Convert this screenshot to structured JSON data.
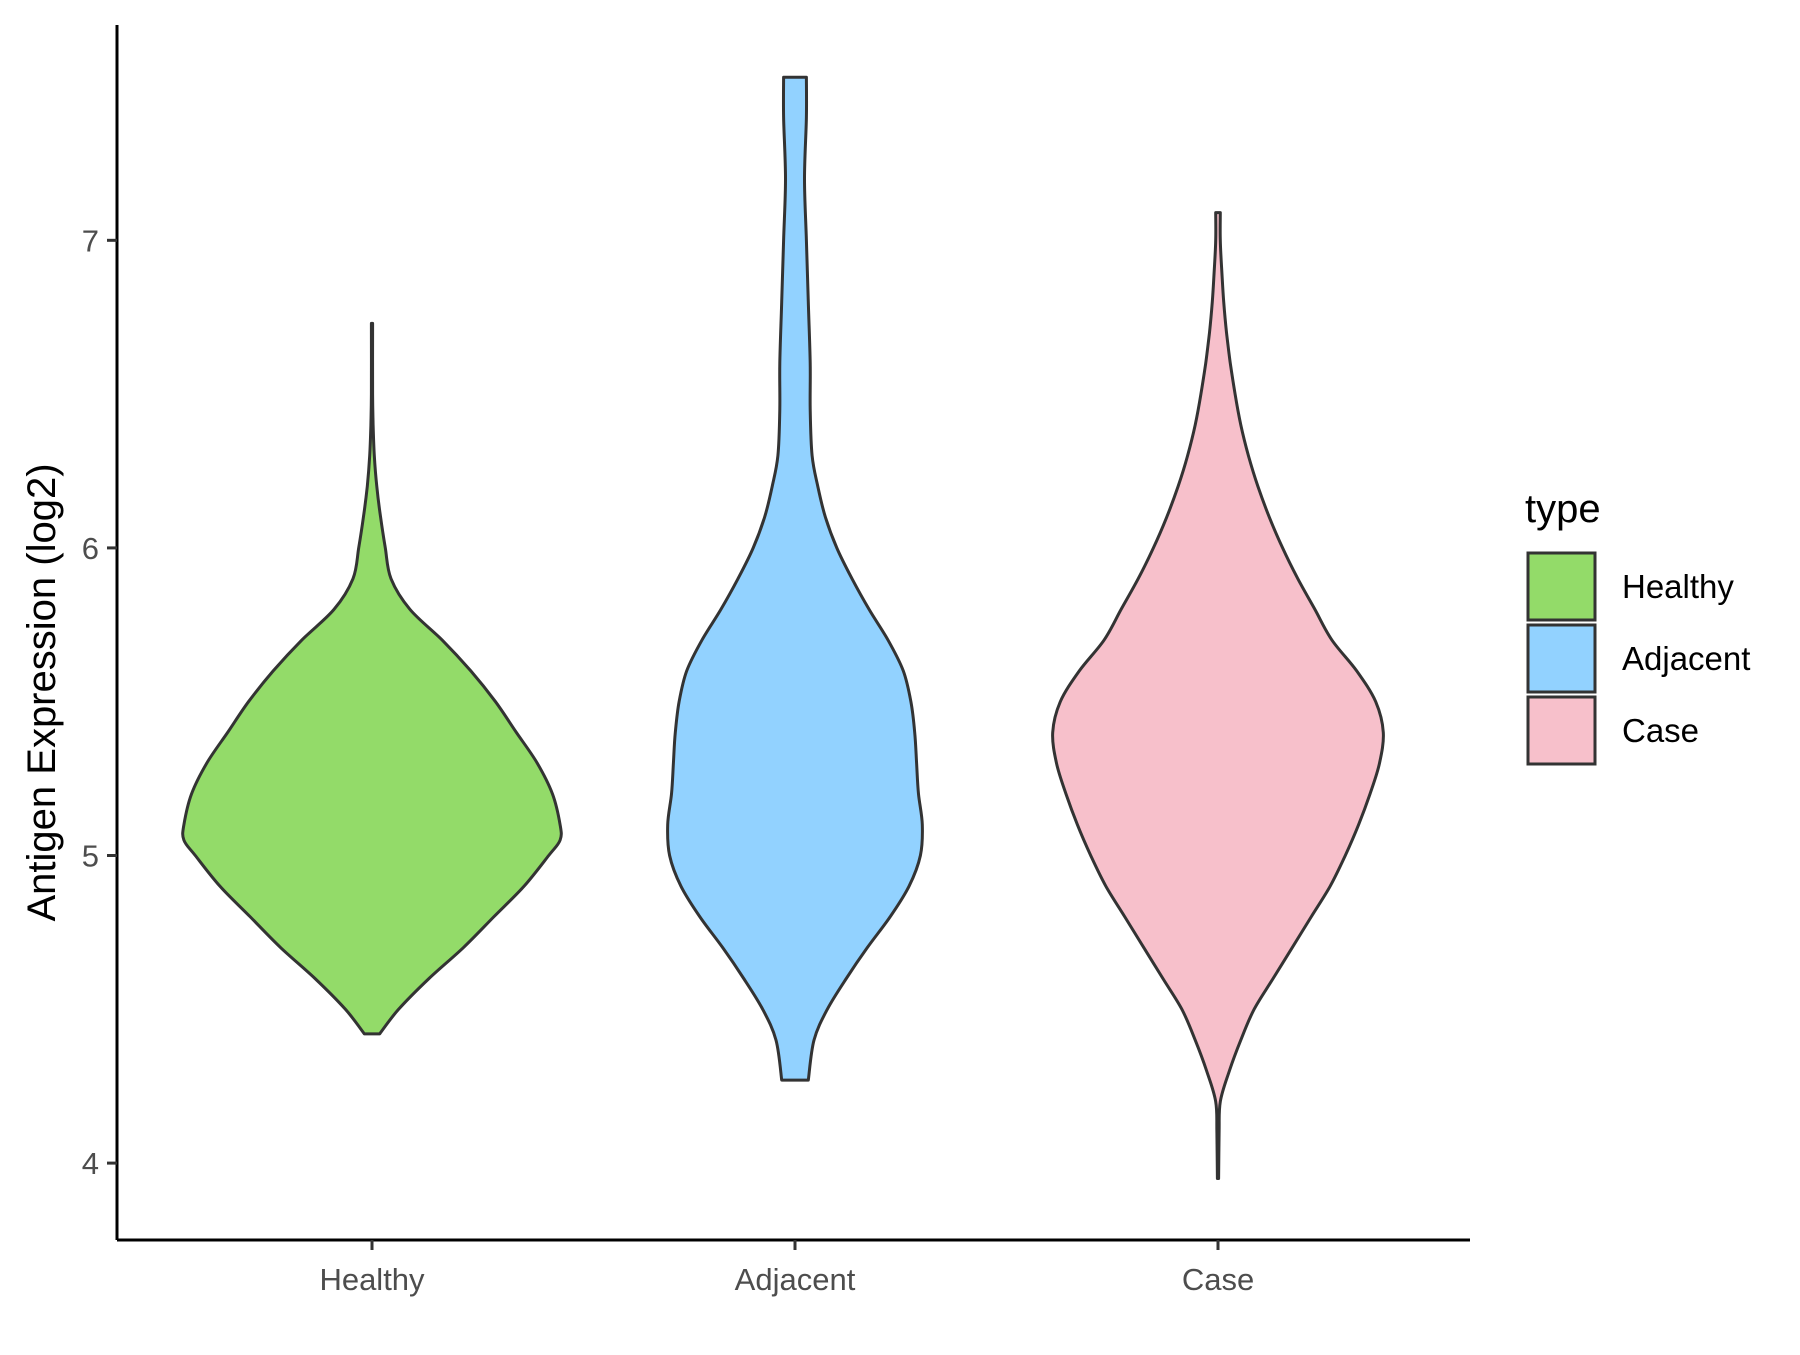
{
  "chart_data": {
    "type": "violin",
    "title": "",
    "xlabel": "",
    "ylabel": "Antigen Expression (log2)",
    "ylim": [
      3.75,
      7.7
    ],
    "yticks": [
      4,
      5,
      6,
      7
    ],
    "grid": false,
    "legend_position": "right",
    "legend_title": "type",
    "categories": [
      "Healthy",
      "Adjacent",
      "Case"
    ],
    "series": [
      {
        "name": "Healthy",
        "color": "#93DB69",
        "min": 4.42,
        "max": 6.73,
        "profile": [
          [
            4.42,
            0.04
          ],
          [
            4.5,
            0.14
          ],
          [
            4.6,
            0.3
          ],
          [
            4.7,
            0.48
          ],
          [
            4.8,
            0.64
          ],
          [
            4.9,
            0.8
          ],
          [
            5.0,
            0.93
          ],
          [
            5.05,
            0.99
          ],
          [
            5.1,
            0.99
          ],
          [
            5.2,
            0.95
          ],
          [
            5.3,
            0.87
          ],
          [
            5.4,
            0.76
          ],
          [
            5.5,
            0.65
          ],
          [
            5.6,
            0.52
          ],
          [
            5.7,
            0.37
          ],
          [
            5.8,
            0.2
          ],
          [
            5.9,
            0.1
          ],
          [
            6.0,
            0.07
          ],
          [
            6.1,
            0.045
          ],
          [
            6.2,
            0.025
          ],
          [
            6.3,
            0.012
          ],
          [
            6.4,
            0.006
          ],
          [
            6.5,
            0.003
          ],
          [
            6.73,
            0.003
          ]
        ]
      },
      {
        "name": "Adjacent",
        "color": "#92D2FF",
        "min": 4.27,
        "max": 7.53,
        "profile": [
          [
            4.27,
            0.07
          ],
          [
            4.4,
            0.1
          ],
          [
            4.5,
            0.17
          ],
          [
            4.6,
            0.27
          ],
          [
            4.7,
            0.38
          ],
          [
            4.8,
            0.5
          ],
          [
            4.9,
            0.6
          ],
          [
            5.0,
            0.66
          ],
          [
            5.1,
            0.67
          ],
          [
            5.2,
            0.65
          ],
          [
            5.3,
            0.64
          ],
          [
            5.4,
            0.63
          ],
          [
            5.5,
            0.61
          ],
          [
            5.6,
            0.57
          ],
          [
            5.7,
            0.49
          ],
          [
            5.8,
            0.39
          ],
          [
            5.9,
            0.3
          ],
          [
            6.0,
            0.22
          ],
          [
            6.1,
            0.16
          ],
          [
            6.2,
            0.12
          ],
          [
            6.3,
            0.09
          ],
          [
            6.45,
            0.08
          ],
          [
            6.6,
            0.08
          ],
          [
            6.8,
            0.07
          ],
          [
            7.0,
            0.06
          ],
          [
            7.2,
            0.05
          ],
          [
            7.4,
            0.06
          ],
          [
            7.53,
            0.06
          ]
        ]
      },
      {
        "name": "Case",
        "color": "#F7C0CB",
        "min": 3.95,
        "max": 7.09,
        "profile": [
          [
            3.95,
            0.003
          ],
          [
            4.1,
            0.006
          ],
          [
            4.2,
            0.012
          ],
          [
            4.3,
            0.06
          ],
          [
            4.4,
            0.12
          ],
          [
            4.5,
            0.19
          ],
          [
            4.6,
            0.29
          ],
          [
            4.7,
            0.39
          ],
          [
            4.8,
            0.49
          ],
          [
            4.9,
            0.59
          ],
          [
            5.0,
            0.67
          ],
          [
            5.1,
            0.74
          ],
          [
            5.2,
            0.8
          ],
          [
            5.3,
            0.85
          ],
          [
            5.4,
            0.87
          ],
          [
            5.5,
            0.83
          ],
          [
            5.6,
            0.73
          ],
          [
            5.7,
            0.6
          ],
          [
            5.8,
            0.51
          ],
          [
            5.9,
            0.42
          ],
          [
            6.0,
            0.34
          ],
          [
            6.1,
            0.27
          ],
          [
            6.2,
            0.21
          ],
          [
            6.3,
            0.16
          ],
          [
            6.4,
            0.12
          ],
          [
            6.5,
            0.09
          ],
          [
            6.6,
            0.065
          ],
          [
            6.7,
            0.045
          ],
          [
            6.8,
            0.03
          ],
          [
            6.9,
            0.02
          ],
          [
            7.0,
            0.012
          ],
          [
            7.09,
            0.012
          ]
        ]
      }
    ]
  },
  "legend": {
    "title": "type",
    "items": [
      {
        "label": "Healthy",
        "color": "#93DB69"
      },
      {
        "label": "Adjacent",
        "color": "#92D2FF"
      },
      {
        "label": "Case",
        "color": "#F7C0CB"
      }
    ]
  },
  "axes": {
    "y_title": "Antigen Expression (log2)",
    "y_tick_labels": [
      "4",
      "5",
      "6",
      "7"
    ],
    "x_tick_labels": [
      "Healthy",
      "Adjacent",
      "Case"
    ]
  }
}
